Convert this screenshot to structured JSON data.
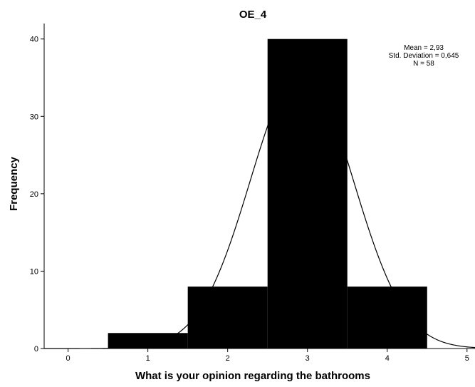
{
  "chart_data": {
    "type": "bar",
    "title": "OE_4",
    "xlabel": "What is your opinion regarding the bathrooms",
    "ylabel": "Frequency",
    "xlim": [
      -0.3,
      5.1
    ],
    "ylim": [
      0,
      42
    ],
    "xticks": [
      "0",
      "1",
      "2",
      "3",
      "4",
      "5"
    ],
    "yticks": [
      "0",
      "10",
      "20",
      "30",
      "40"
    ],
    "bins": [
      {
        "x": 1,
        "value": 2
      },
      {
        "x": 2,
        "value": 8
      },
      {
        "x": 3,
        "value": 40
      },
      {
        "x": 4,
        "value": 8
      }
    ],
    "bin_width": 1,
    "bar_color": "#000000",
    "normal_curve": {
      "mean": 2.93,
      "std": 0.645,
      "n": 58
    },
    "stats": {
      "mean_text": "Mean = 2,93",
      "std_text": "Std. Deviation = 0,645",
      "n_text": "N = 58"
    },
    "grid": false,
    "legend": "none"
  }
}
